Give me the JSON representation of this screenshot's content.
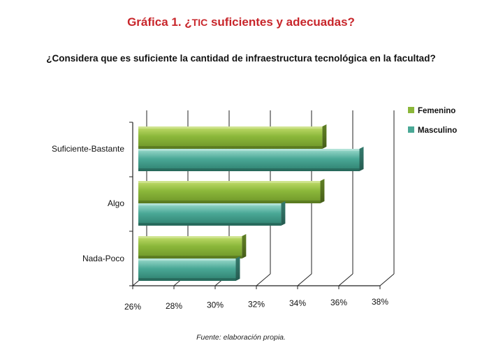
{
  "title_prefix": "Gráfica 1. ¿",
  "title_tic": "TIC",
  "title_rest": " suficientes y adecuadas?",
  "subtitle": "¿Considera que es suficiente la cantidad de infraestructura tecnológica en la facultad?",
  "source": "Fuente: elaboración propia.",
  "colors": {
    "femenino": "#8bb73a",
    "masculino": "#4aa896",
    "grid": "#222222"
  },
  "chart_data": {
    "type": "bar",
    "orientation": "horizontal",
    "categories": [
      "Suficiente-Bastante",
      "Algo",
      "Nada-Poco"
    ],
    "series": [
      {
        "name": "Femenino",
        "values": [
          35.2,
          35.1,
          31.3
        ]
      },
      {
        "name": "Masculino",
        "values": [
          37.0,
          33.2,
          31.0
        ]
      }
    ],
    "xlim": [
      26,
      38
    ],
    "x_ticks": [
      "26%",
      "28%",
      "30%",
      "32%",
      "34%",
      "36%",
      "38%"
    ],
    "x_tick_values": [
      26,
      28,
      30,
      32,
      34,
      36,
      38
    ],
    "grid": true,
    "legend_position": "top-right"
  }
}
